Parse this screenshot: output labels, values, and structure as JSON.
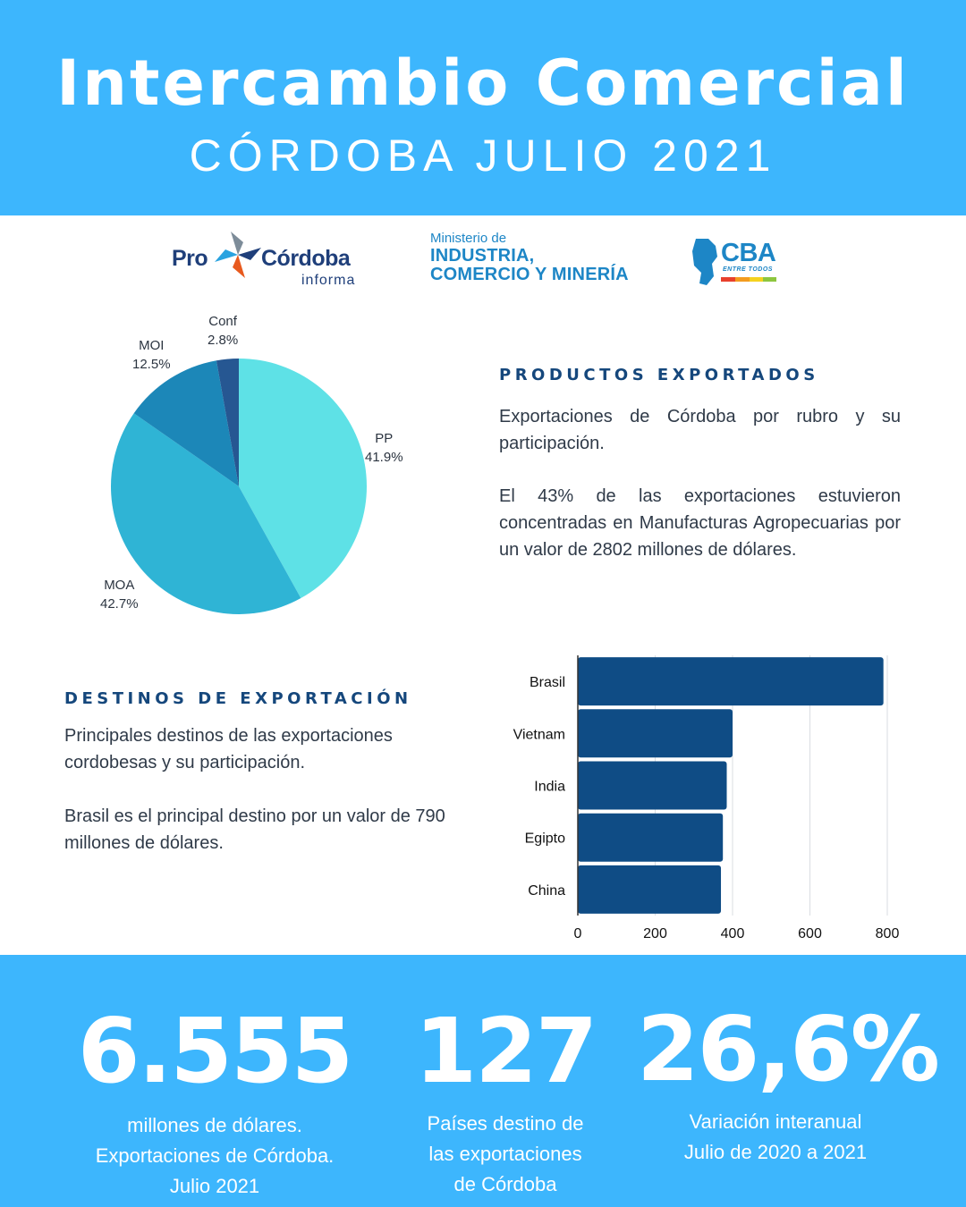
{
  "header": {
    "title": "Intercambio Comercial",
    "subtitle": "CÓRDOBA JULIO 2021",
    "background": "#3db6fd"
  },
  "logos": {
    "procordoba": {
      "pro": "Pro",
      "cordoba": "Córdoba",
      "informa": "informa"
    },
    "ministerio": {
      "line1": "Ministerio de",
      "line2": "INDUSTRIA,",
      "line3": "COMERCIO Y MINERÍA"
    },
    "cba": {
      "name": "CBA",
      "tagline": "ENTRE TODOS"
    }
  },
  "productos": {
    "heading": "PRODUCTOS EXPORTADOS",
    "paragraph1": "Exportaciones de Córdoba por rubro y su participación.",
    "paragraph2": "El 43% de las exportaciones estuvieron concentradas en Manufacturas Agropecuarias por un valor de 2802 millones de dólares."
  },
  "destinos": {
    "heading": "DESTINOS DE EXPORTACIÓN",
    "paragraph1": "Principales destinos de las exportaciones cordobesas y su participación.",
    "paragraph2": "Brasil es el principal destino por un valor de 790 millones de dólares."
  },
  "chart_data": [
    {
      "type": "pie",
      "categories": [
        "PP",
        "MOA",
        "MOI",
        "Conf"
      ],
      "values": [
        41.9,
        42.7,
        12.5,
        2.8
      ],
      "labels": [
        "41.9%",
        "42.7%",
        "12.5%",
        "2.8%"
      ],
      "colors": [
        "#5ee1e6",
        "#2fb4d5",
        "#1c87b8",
        "#265792"
      ]
    },
    {
      "type": "bar",
      "orientation": "horizontal",
      "categories": [
        "Brasil",
        "Vietnam",
        "India",
        "Egipto",
        "China"
      ],
      "values": [
        790,
        400,
        385,
        375,
        370
      ],
      "xlim": [
        0,
        800
      ],
      "xticks": [
        "0",
        "200",
        "400",
        "600",
        "800"
      ],
      "grid": true,
      "color": "#0f4c85"
    }
  ],
  "stats": [
    {
      "value": "6.555",
      "lines": [
        "millones de dólares.",
        "Exportaciones de Córdoba.",
        "Julio 2021"
      ]
    },
    {
      "value": "127",
      "lines": [
        "Países destino de",
        "las exportaciones",
        "de Córdoba"
      ]
    },
    {
      "value": "26,6%",
      "lines": [
        "Variación interanual",
        "Julio de 2020 a 2021"
      ]
    }
  ]
}
